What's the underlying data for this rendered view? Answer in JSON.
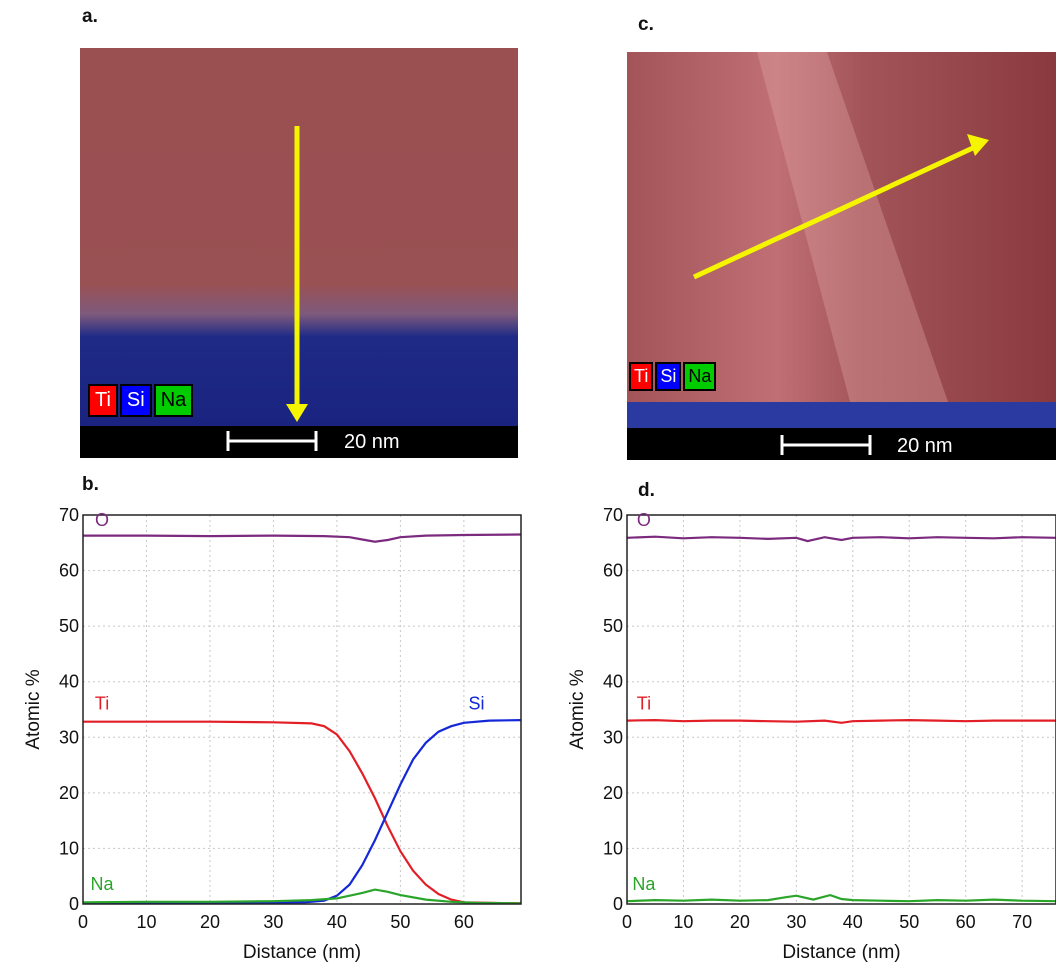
{
  "panel_labels": {
    "a": "a.",
    "b": "b.",
    "c": "c.",
    "d": "d."
  },
  "legend": [
    {
      "label": "Ti",
      "color": "#ff0000"
    },
    {
      "label": "Si",
      "color": "#0000ff"
    },
    {
      "label": "Na",
      "color": "#00cc00"
    }
  ],
  "scale_bar": "20 nm",
  "colors": {
    "O": "#7b2a7e",
    "Ti": "#e21e26",
    "Si": "#1428d8",
    "Na": "#2aa52a",
    "arrow": "#f5f500"
  },
  "chart_data": [
    {
      "type": "line",
      "panel": "b.",
      "xlabel": "Distance (nm)",
      "ylabel": "Atomic %",
      "xlim": [
        0,
        69
      ],
      "ylim": [
        0,
        70
      ],
      "xticks": [
        0,
        10,
        20,
        30,
        40,
        50,
        60
      ],
      "yticks": [
        0,
        10,
        20,
        30,
        40,
        50,
        60,
        70
      ],
      "grid": true,
      "series": [
        {
          "name": "O",
          "x": [
            0,
            10,
            20,
            30,
            38,
            42,
            44,
            46,
            48,
            50,
            54,
            60,
            69
          ],
          "y": [
            66.3,
            66.3,
            66.2,
            66.3,
            66.2,
            66.0,
            65.6,
            65.2,
            65.5,
            66.0,
            66.3,
            66.4,
            66.5
          ]
        },
        {
          "name": "Ti",
          "x": [
            0,
            10,
            20,
            30,
            36,
            38,
            40,
            42,
            44,
            46,
            48,
            50,
            52,
            54,
            56,
            58,
            60,
            69
          ],
          "y": [
            32.8,
            32.8,
            32.8,
            32.7,
            32.5,
            32.0,
            30.5,
            27.5,
            23.5,
            19.0,
            14.0,
            9.5,
            6.0,
            3.5,
            1.8,
            0.8,
            0.3,
            0.1
          ]
        },
        {
          "name": "Si",
          "x": [
            0,
            20,
            35,
            38,
            40,
            42,
            44,
            46,
            48,
            50,
            52,
            54,
            56,
            58,
            60,
            64,
            69
          ],
          "y": [
            0.2,
            0.2,
            0.3,
            0.6,
            1.5,
            3.5,
            7.0,
            11.5,
            16.5,
            21.5,
            26.0,
            29.0,
            31.0,
            32.0,
            32.6,
            33.0,
            33.1
          ]
        },
        {
          "name": "Na",
          "x": [
            0,
            10,
            20,
            30,
            36,
            40,
            42,
            44,
            46,
            48,
            50,
            54,
            58,
            62,
            69
          ],
          "y": [
            0.3,
            0.4,
            0.4,
            0.5,
            0.7,
            1.0,
            1.5,
            2.0,
            2.6,
            2.2,
            1.6,
            0.8,
            0.4,
            0.2,
            0.1
          ]
        }
      ],
      "annotations": [
        {
          "text": "O",
          "x": 3,
          "y": 68
        },
        {
          "text": "Ti",
          "x": 3,
          "y": 35
        },
        {
          "text": "Si",
          "x": 62,
          "y": 35
        },
        {
          "text": "Na",
          "x": 3,
          "y": 2.5
        }
      ]
    },
    {
      "type": "line",
      "panel": "d.",
      "xlabel": "Distance (nm)",
      "ylabel": "Atomic %",
      "xlim": [
        0,
        76
      ],
      "ylim": [
        0,
        70
      ],
      "xticks": [
        0,
        10,
        20,
        30,
        40,
        50,
        60,
        70
      ],
      "yticks": [
        0,
        10,
        20,
        30,
        40,
        50,
        60,
        70
      ],
      "grid": true,
      "series": [
        {
          "name": "O",
          "x": [
            0,
            5,
            10,
            15,
            20,
            25,
            30,
            32,
            35,
            38,
            40,
            45,
            50,
            55,
            60,
            65,
            70,
            76
          ],
          "y": [
            65.9,
            66.1,
            65.8,
            66.0,
            65.9,
            65.7,
            65.9,
            65.3,
            66.0,
            65.5,
            65.9,
            66.0,
            65.8,
            66.0,
            65.9,
            65.8,
            66.0,
            65.9
          ]
        },
        {
          "name": "Ti",
          "x": [
            0,
            5,
            10,
            15,
            20,
            25,
            30,
            35,
            38,
            40,
            45,
            50,
            55,
            60,
            65,
            70,
            76
          ],
          "y": [
            33.0,
            33.1,
            32.9,
            33.0,
            33.0,
            32.9,
            32.8,
            33.0,
            32.6,
            32.9,
            33.0,
            33.1,
            33.0,
            32.9,
            33.0,
            33.0,
            33.0
          ]
        },
        {
          "name": "Na",
          "x": [
            0,
            5,
            10,
            15,
            20,
            25,
            28,
            30,
            33,
            36,
            38,
            40,
            45,
            50,
            55,
            60,
            65,
            70,
            76
          ],
          "y": [
            0.5,
            0.7,
            0.6,
            0.8,
            0.6,
            0.7,
            1.2,
            1.5,
            0.8,
            1.6,
            0.9,
            0.7,
            0.6,
            0.5,
            0.7,
            0.6,
            0.8,
            0.6,
            0.5
          ]
        }
      ],
      "annotations": [
        {
          "text": "O",
          "x": 3,
          "y": 68
        },
        {
          "text": "Ti",
          "x": 3,
          "y": 35
        },
        {
          "text": "Na",
          "x": 3,
          "y": 2.5
        }
      ]
    }
  ]
}
